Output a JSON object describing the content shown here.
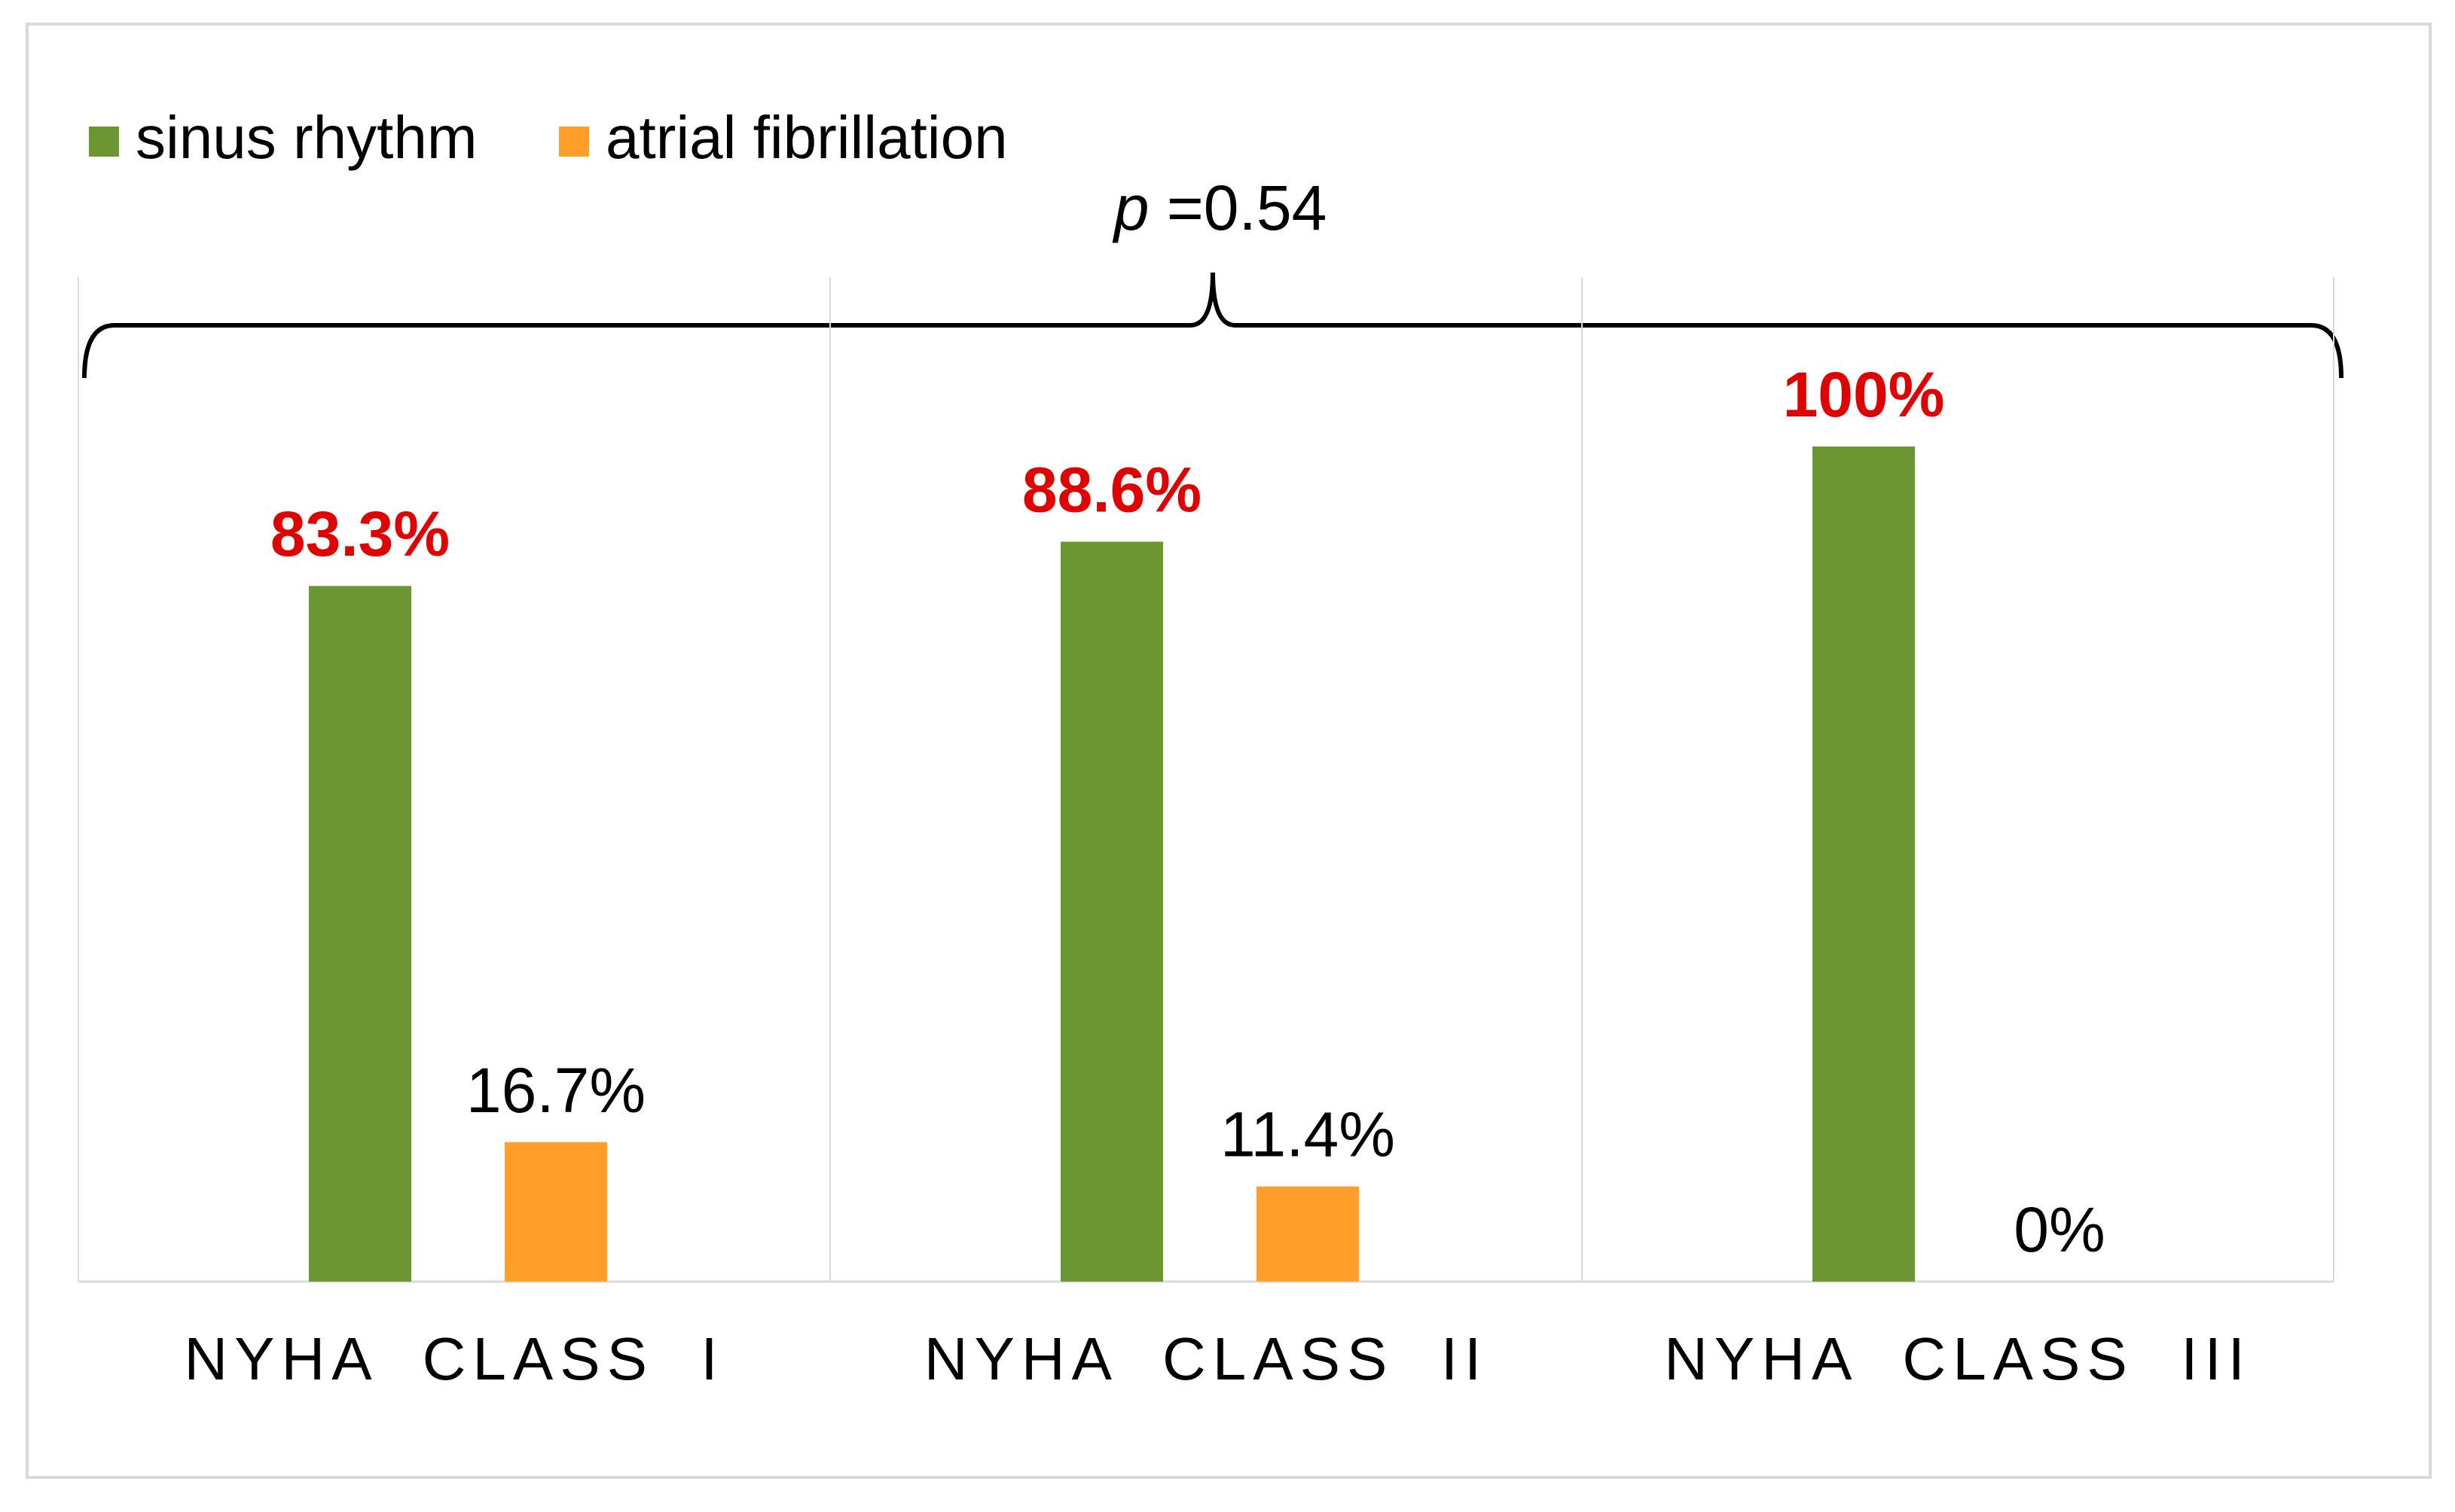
{
  "chart_data": {
    "type": "bar",
    "title": "",
    "xlabel": "",
    "ylabel": "",
    "ylim": [
      0,
      100
    ],
    "grid": false,
    "legend_position": "top-left",
    "categories": [
      "NYHA  CLASS  I",
      "NYHA  CLASS  II",
      "NYHA  CLASS  III"
    ],
    "series": [
      {
        "name": "sinus rhythm",
        "color": "#6b9632",
        "values": [
          83.3,
          88.6,
          100
        ],
        "labels": [
          "83.3%",
          "88.6%",
          "100%"
        ],
        "label_color": "#e00000",
        "label_bold": true
      },
      {
        "name": "atrial fibrillation",
        "color": "#ff9f2a",
        "values": [
          16.7,
          11.4,
          0
        ],
        "labels": [
          "16.7%",
          "11.4%",
          "0%"
        ],
        "label_color": "#000000",
        "label_bold": false
      }
    ],
    "annotation": {
      "p_symbol": "p",
      "p_value": " =0.54",
      "spans": "all categories"
    }
  }
}
